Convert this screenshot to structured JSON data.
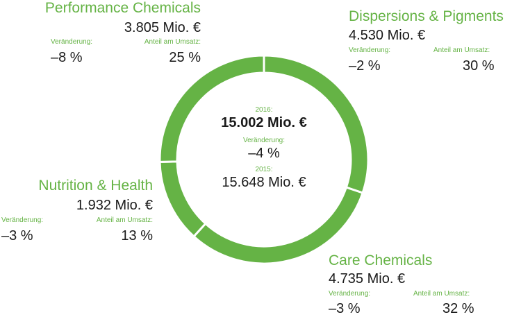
{
  "colors": {
    "accent": "#65b345",
    "separator": "#ffffff",
    "text": "#1a1a1a"
  },
  "chart_data": {
    "type": "pie",
    "categories": [
      "Dispersions & Pigments",
      "Care Chemicals",
      "Nutrition & Health",
      "Performance Chemicals"
    ],
    "values": [
      4530,
      4735,
      1932,
      3805
    ],
    "unit": "Mio. €",
    "total": {
      "year_label": "2016:",
      "value_text": "15.002 Mio. €",
      "change_label": "Veränderung:",
      "change_value": "–4 %",
      "prior_label": "2015:",
      "prior_value_text": "15.648 Mio. €"
    },
    "segments": [
      {
        "name": "Performance Chemicals",
        "amount": "3.805 Mio. €",
        "change_label": "Veränderung:",
        "change": "–8 %",
        "share_label": "Anteil am Umsatz:",
        "share": "25 %"
      },
      {
        "name": "Dispersions & Pigments",
        "amount": "4.530 Mio. €",
        "change_label": "Veränderung:",
        "change": "–2 %",
        "share_label": "Anteil am Umsatz:",
        "share": "30 %"
      },
      {
        "name": "Nutrition & Health",
        "amount": "1.932 Mio. €",
        "change_label": "Veränderung:",
        "change": "–3 %",
        "share_label": "Anteil am Umsatz:",
        "share": "13 %"
      },
      {
        "name": "Care Chemicals",
        "amount": "4.735 Mio. €",
        "change_label": "Veränderung:",
        "change": "–3 %",
        "share_label": "Anteil am Umsatz:",
        "share": "32 %"
      }
    ]
  }
}
